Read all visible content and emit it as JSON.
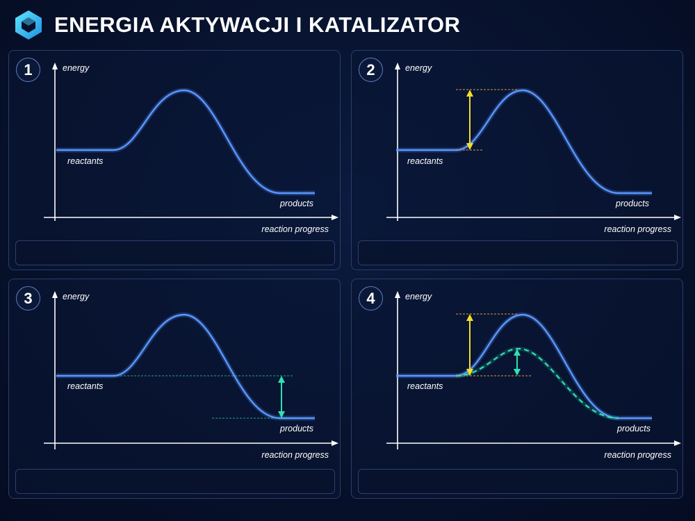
{
  "header": {
    "title": "ENERGIA AKTYWACJI I KATALIZATOR",
    "logo_icon": "hexagon-cube-icon"
  },
  "colors": {
    "curve": "#4f8dff",
    "activation_arrow": "#f2dc2a",
    "reaction_energy_arrow": "#2fe0b4",
    "catalyst_curve": "#2fe0b4",
    "axis": "#ffffff"
  },
  "labels": {
    "y_axis": "energy",
    "x_axis": "reaction progress",
    "reactants": "reactants",
    "products": "products"
  },
  "panels": [
    {
      "number": "1",
      "show_activation_arrow": false,
      "show_reaction_arrow": false,
      "show_catalyst_curve": false
    },
    {
      "number": "2",
      "show_activation_arrow": true,
      "show_reaction_arrow": false,
      "show_catalyst_curve": false
    },
    {
      "number": "3",
      "show_activation_arrow": false,
      "show_reaction_arrow": true,
      "show_catalyst_curve": false
    },
    {
      "number": "4",
      "show_activation_arrow": true,
      "show_reaction_arrow": false,
      "show_catalyst_curve": true
    }
  ]
}
